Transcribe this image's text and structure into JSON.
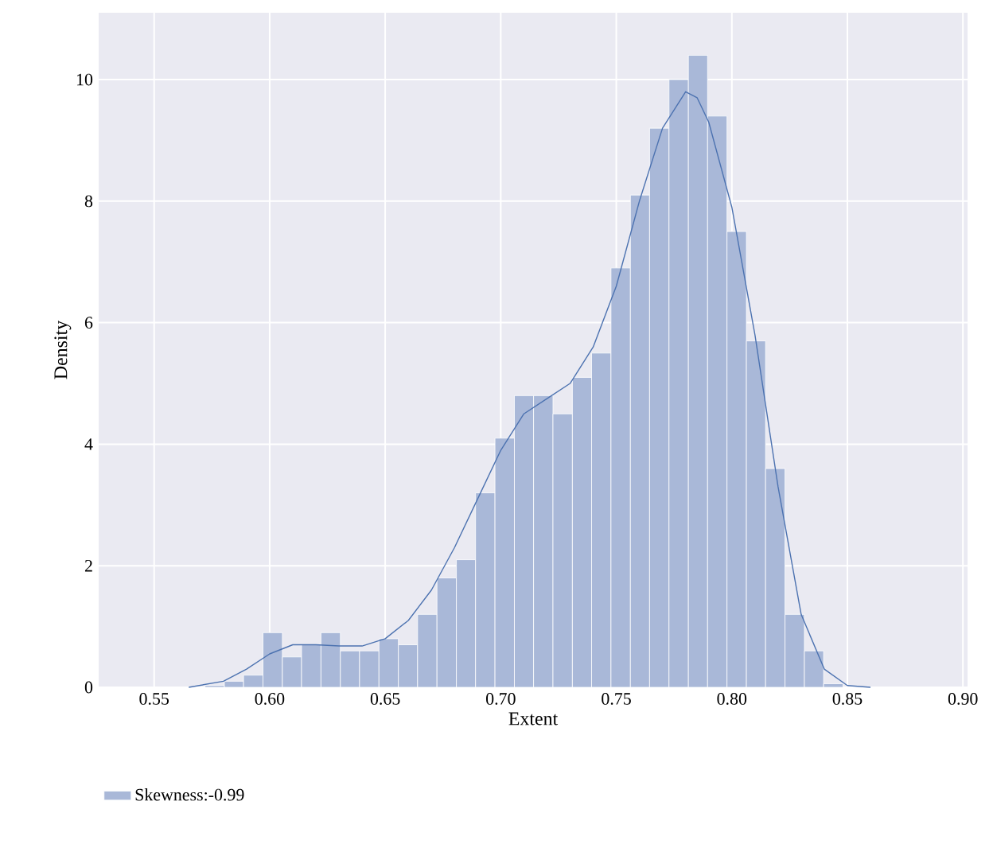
{
  "chart_data": {
    "type": "histogram",
    "xlabel": "Extent",
    "ylabel": "Density",
    "bins": [
      0.572,
      0.5804,
      0.5887,
      0.5971,
      0.6055,
      0.6138,
      0.6222,
      0.6306,
      0.6389,
      0.6473,
      0.6557,
      0.664,
      0.6724,
      0.6808,
      0.6891,
      0.6975,
      0.7059,
      0.7142,
      0.7226,
      0.731,
      0.7393,
      0.7477,
      0.7561,
      0.7644,
      0.7728,
      0.7812,
      0.7895,
      0.7979,
      0.8063,
      0.8146,
      0.823,
      0.8314,
      0.8397,
      0.8481
    ],
    "series": [
      {
        "type": "histogram",
        "name": "Skewness:-0.99",
        "color": "#a9b8d8",
        "values": [
          0.03,
          0.1,
          0.2,
          0.9,
          0.5,
          0.7,
          0.9,
          0.6,
          0.6,
          0.8,
          0.7,
          1.2,
          1.8,
          2.1,
          3.2,
          4.1,
          4.8,
          4.8,
          4.5,
          5.1,
          5.5,
          6.9,
          8.1,
          9.2,
          10.0,
          10.4,
          9.4,
          7.5,
          5.7,
          3.6,
          1.2,
          0.6,
          0.06
        ]
      },
      {
        "type": "line",
        "color": "#4c72b0",
        "x": [
          0.565,
          0.58,
          0.59,
          0.6,
          0.61,
          0.62,
          0.63,
          0.64,
          0.65,
          0.66,
          0.67,
          0.68,
          0.69,
          0.7,
          0.71,
          0.72,
          0.73,
          0.74,
          0.75,
          0.76,
          0.77,
          0.78,
          0.785,
          0.79,
          0.8,
          0.81,
          0.82,
          0.83,
          0.84,
          0.85,
          0.86
        ],
        "values": [
          0,
          0.1,
          0.3,
          0.55,
          0.7,
          0.7,
          0.68,
          0.68,
          0.8,
          1.1,
          1.6,
          2.3,
          3.1,
          3.9,
          4.5,
          4.75,
          5.0,
          5.6,
          6.6,
          8.0,
          9.2,
          9.8,
          9.7,
          9.3,
          7.9,
          5.8,
          3.3,
          1.2,
          0.3,
          0.03,
          0
        ]
      }
    ],
    "xlim": [
      0.526,
      0.902
    ],
    "ylim": [
      0,
      11.1
    ],
    "xticks": [
      {
        "value": 0.55,
        "label": "0.55"
      },
      {
        "value": 0.6,
        "label": "0.60"
      },
      {
        "value": 0.65,
        "label": "0.65"
      },
      {
        "value": 0.7,
        "label": "0.70"
      },
      {
        "value": 0.75,
        "label": "0.75"
      },
      {
        "value": 0.8,
        "label": "0.80"
      },
      {
        "value": 0.85,
        "label": "0.85"
      },
      {
        "value": 0.9,
        "label": "0.90"
      }
    ],
    "yticks": [
      0,
      2,
      4,
      6,
      8,
      10
    ],
    "grid": true,
    "legend": "bottom left",
    "line_style": "solid",
    "marker": "none"
  }
}
